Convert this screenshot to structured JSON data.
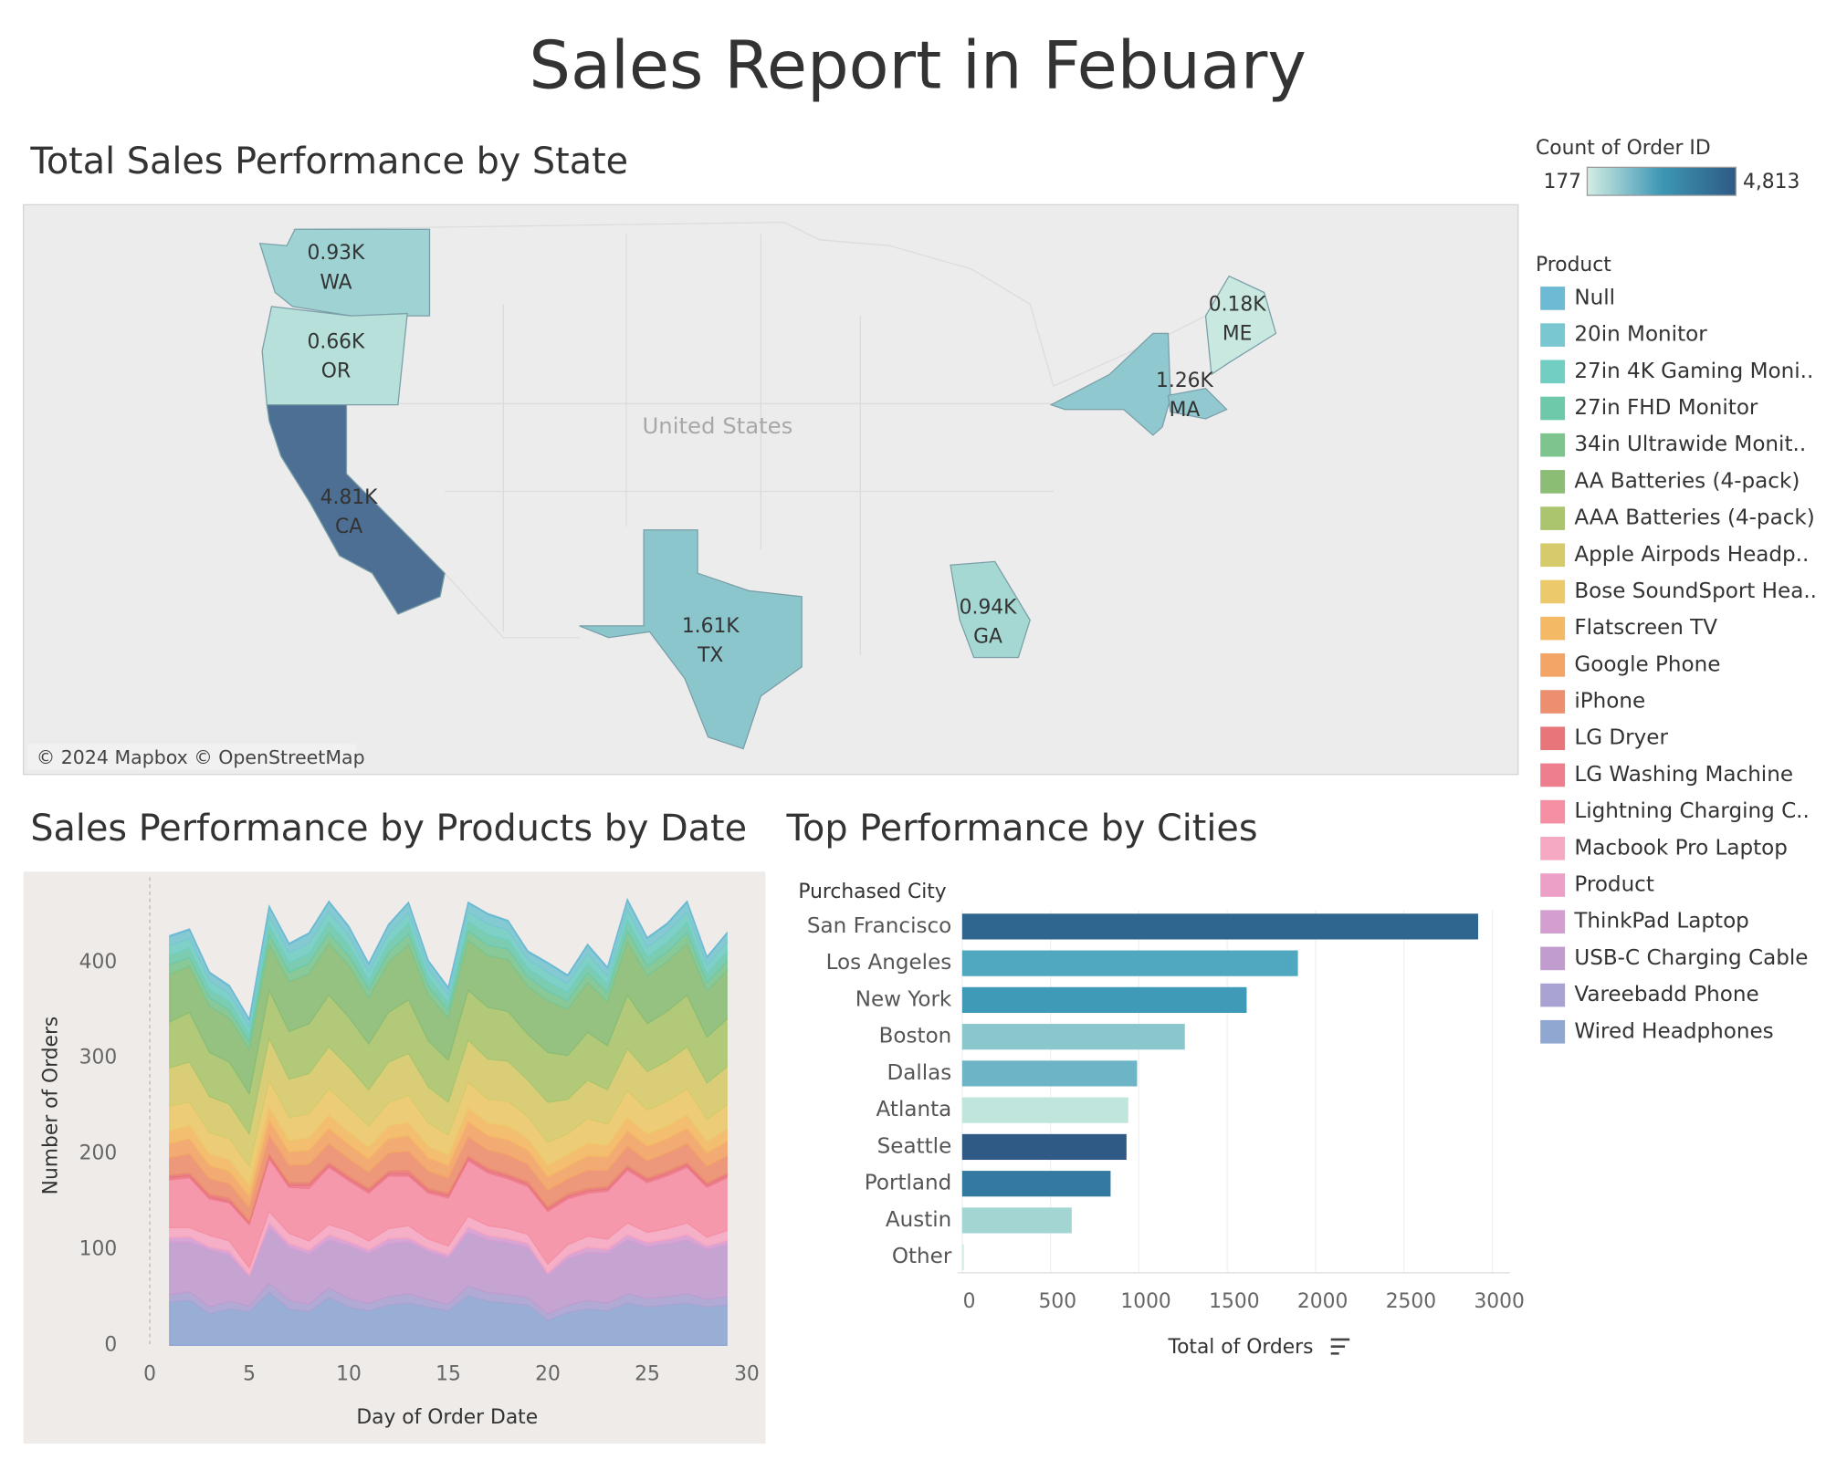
{
  "title": "Sales Report in Febuary",
  "chart_data": [
    {
      "type": "map",
      "title": "Total Sales Performance by State",
      "attribution": "© 2024 Mapbox © OpenStreetMap",
      "country_label": "United States",
      "states": [
        "WA",
        "OR",
        "CA",
        "TX",
        "GA",
        "MA",
        "ME"
      ],
      "values": [
        930,
        660,
        4810,
        1610,
        940,
        1260,
        180
      ],
      "value_labels": [
        "0.93K",
        "0.66K",
        "4.81K",
        "1.61K",
        "0.94K",
        "1.26K",
        "0.18K"
      ],
      "colors": [
        "#9fd3d3",
        "#b7e0db",
        "#4d6f94",
        "#8cc6cd",
        "#a6d8d3",
        "#92c9d0",
        "#c9e8df"
      ],
      "color_legend": {
        "title": "Count of Order ID",
        "ticks": [
          177,
          {
            "value": 4813,
            "label": "4,813"
          }
        ],
        "colors": [
          "#d3ede3",
          "#3d97b5",
          "#2e5a85"
        ]
      }
    },
    {
      "type": "area",
      "stacked": true,
      "title": "Sales Performance by Products by Date",
      "xlabel": "Day of Order Date",
      "ylabel": "Number of Orders",
      "legend_title": "Product",
      "x": [
        1,
        2,
        3,
        4,
        5,
        6,
        7,
        8,
        9,
        10,
        11,
        12,
        13,
        14,
        15,
        16,
        17,
        18,
        19,
        20,
        21,
        22,
        23,
        24,
        25,
        26,
        27,
        28,
        29
      ],
      "xlim": [
        -1.35,
        31
      ],
      "ylim": [
        0,
        495
      ],
      "xticks": [
        0,
        5,
        10,
        15,
        20,
        25,
        30
      ],
      "yticks": [
        0,
        100,
        200,
        300,
        400
      ],
      "series": [
        {
          "name": "Null",
          "color": "#6cbad3",
          "values": [
            1,
            1,
            1,
            1,
            1,
            1,
            1,
            1,
            1,
            1,
            1,
            1,
            1,
            1,
            1,
            1,
            1,
            1,
            1,
            1,
            1,
            1,
            1,
            1,
            1,
            1,
            1,
            1,
            1
          ]
        },
        {
          "name": "20in Monitor",
          "color": "#79c7d0",
          "values": [
            9,
            9,
            8,
            8,
            7,
            9,
            9,
            10,
            10,
            9,
            8,
            9,
            10,
            8,
            7,
            9,
            10,
            9,
            8,
            9,
            8,
            9,
            8,
            10,
            9,
            9,
            10,
            8,
            9
          ]
        },
        {
          "name": "27in 4K Gaming Moni..",
          "color": "#72cec3",
          "values": [
            10,
            10,
            9,
            8,
            8,
            10,
            10,
            11,
            11,
            10,
            9,
            10,
            11,
            9,
            8,
            10,
            11,
            10,
            9,
            10,
            9,
            10,
            9,
            11,
            10,
            10,
            11,
            9,
            10
          ]
        },
        {
          "name": "27in FHD Monitor",
          "color": "#6ec9ab",
          "values": [
            10,
            10,
            9,
            9,
            8,
            10,
            10,
            10,
            11,
            11,
            9,
            10,
            11,
            9,
            8,
            10,
            11,
            10,
            9,
            10,
            9,
            10,
            9,
            11,
            10,
            10,
            11,
            9,
            10
          ]
        },
        {
          "name": "34in Ultrawide Monit..",
          "color": "#7dc48e",
          "values": [
            10,
            9,
            9,
            8,
            8,
            10,
            10,
            11,
            11,
            10,
            9,
            10,
            11,
            9,
            8,
            10,
            11,
            11,
            10,
            10,
            9,
            10,
            9,
            11,
            10,
            10,
            11,
            9,
            10
          ]
        },
        {
          "name": "AA Batteries (4-pack)",
          "color": "#8bbd75",
          "values": [
            50,
            48,
            48,
            46,
            46,
            48,
            52,
            52,
            54,
            54,
            48,
            52,
            58,
            48,
            44,
            52,
            54,
            54,
            50,
            54,
            48,
            52,
            46,
            56,
            50,
            52,
            54,
            48,
            50
          ]
        },
        {
          "name": "AAA Batteries (4-pack)",
          "color": "#abc56e",
          "values": [
            48,
            52,
            46,
            44,
            42,
            50,
            50,
            52,
            54,
            52,
            48,
            52,
            56,
            48,
            44,
            52,
            54,
            52,
            48,
            52,
            46,
            50,
            46,
            56,
            50,
            52,
            54,
            48,
            50
          ]
        },
        {
          "name": "Apple Airpods Headp..",
          "color": "#d6cb6a",
          "values": [
            40,
            42,
            38,
            36,
            34,
            44,
            40,
            42,
            44,
            42,
            38,
            42,
            44,
            38,
            34,
            44,
            42,
            42,
            38,
            42,
            36,
            40,
            36,
            44,
            40,
            42,
            44,
            38,
            40
          ]
        },
        {
          "name": "Bose SoundSport Hea..",
          "color": "#ecc96a",
          "values": [
            26,
            24,
            22,
            22,
            20,
            28,
            24,
            25,
            27,
            26,
            22,
            25,
            28,
            24,
            21,
            27,
            25,
            26,
            23,
            24,
            22,
            26,
            22,
            28,
            25,
            26,
            27,
            23,
            25
          ]
        },
        {
          "name": "Flatscreen TV",
          "color": "#f4b964",
          "values": [
            13,
            14,
            12,
            12,
            11,
            13,
            12,
            13,
            14,
            13,
            12,
            13,
            14,
            12,
            11,
            14,
            13,
            14,
            12,
            12,
            12,
            13,
            12,
            14,
            13,
            13,
            14,
            12,
            13
          ]
        },
        {
          "name": "Google Phone",
          "color": "#f3a467",
          "values": [
            15,
            16,
            14,
            13,
            12,
            16,
            14,
            15,
            16,
            15,
            14,
            15,
            16,
            14,
            13,
            16,
            15,
            16,
            15,
            14,
            13,
            15,
            14,
            16,
            15,
            15,
            16,
            14,
            15
          ]
        },
        {
          "name": "iPhone",
          "color": "#ec8f6e",
          "values": [
            18,
            20,
            16,
            15,
            14,
            20,
            18,
            19,
            20,
            18,
            17,
            19,
            20,
            18,
            16,
            20,
            19,
            20,
            18,
            17,
            16,
            19,
            17,
            20,
            18,
            19,
            20,
            17,
            18
          ]
        },
        {
          "name": "LG Dryer",
          "color": "#e8757a",
          "values": [
            3,
            3,
            3,
            4,
            2,
            3,
            3,
            3,
            3,
            3,
            3,
            3,
            4,
            3,
            3,
            3,
            3,
            3,
            3,
            3,
            3,
            3,
            3,
            3,
            3,
            3,
            3,
            3,
            3
          ]
        },
        {
          "name": "LG Washing Machine",
          "color": "#ee7d8e",
          "values": [
            2,
            2,
            2,
            1,
            2,
            2,
            2,
            3,
            2,
            2,
            2,
            2,
            2,
            2,
            2,
            2,
            2,
            2,
            2,
            2,
            2,
            2,
            2,
            2,
            2,
            2,
            2,
            2,
            2
          ]
        },
        {
          "name": "Lightning Charging C..",
          "color": "#f58fa4",
          "values": [
            50,
            52,
            38,
            40,
            45,
            55,
            48,
            55,
            60,
            52,
            50,
            55,
            52,
            48,
            50,
            58,
            55,
            52,
            50,
            55,
            48,
            45,
            50,
            55,
            52,
            55,
            58,
            52,
            55
          ]
        },
        {
          "name": "Macbook Pro Laptop",
          "color": "#f5a9c2",
          "values": [
            10,
            9,
            12,
            10,
            7,
            11,
            10,
            9,
            10,
            11,
            9,
            10,
            12,
            9,
            9,
            11,
            10,
            10,
            9,
            9,
            10,
            11,
            10,
            12,
            10,
            11,
            12,
            9,
            10
          ]
        },
        {
          "name": "Product",
          "color": "#eca0c8",
          "values": [
            1,
            1,
            0,
            1,
            0,
            1,
            1,
            1,
            1,
            1,
            0,
            1,
            1,
            1,
            0,
            1,
            1,
            1,
            1,
            0,
            1,
            1,
            1,
            1,
            1,
            1,
            1,
            0,
            1
          ]
        },
        {
          "name": "ThinkPad Laptop",
          "color": "#d59ed1",
          "values": [
            4,
            5,
            3,
            4,
            3,
            5,
            4,
            4,
            5,
            4,
            4,
            5,
            4,
            3,
            4,
            5,
            4,
            4,
            4,
            3,
            4,
            5,
            4,
            5,
            4,
            4,
            5,
            4,
            4
          ]
        },
        {
          "name": "USB-C Charging Cable",
          "color": "#c09ccf",
          "values": [
            55,
            52,
            60,
            48,
            30,
            58,
            55,
            52,
            50,
            55,
            52,
            55,
            54,
            50,
            48,
            56,
            55,
            54,
            52,
            40,
            48,
            50,
            52,
            56,
            54,
            55,
            56,
            52,
            54
          ]
        },
        {
          "name": "Vareebadd Phone",
          "color": "#a9a3d3",
          "values": [
            8,
            9,
            7,
            8,
            6,
            10,
            9,
            8,
            10,
            9,
            8,
            9,
            10,
            8,
            7,
            10,
            9,
            9,
            8,
            7,
            8,
            9,
            8,
            10,
            9,
            9,
            10,
            8,
            9
          ]
        },
        {
          "name": "Wired Headphones",
          "color": "#8fa7d1",
          "values": [
            45,
            47,
            33,
            38,
            35,
            55,
            38,
            35,
            50,
            40,
            36,
            42,
            44,
            40,
            36,
            52,
            46,
            44,
            42,
            26,
            34,
            38,
            36,
            44,
            40,
            42,
            44,
            40,
            42
          ]
        }
      ]
    },
    {
      "type": "bar",
      "orientation": "horizontal",
      "title": "Top Performance by Cities",
      "categories_label": "Purchased City",
      "xlabel": "Total of Orders",
      "categories": [
        "San Francisco",
        "Los Angeles",
        "New York",
        "Boston",
        "Dallas",
        "Atlanta",
        "Seattle",
        "Portland",
        "Austin",
        "Other"
      ],
      "values": [
        2920,
        1900,
        1610,
        1260,
        990,
        940,
        930,
        840,
        620,
        10
      ],
      "colors": [
        "#2f6690",
        "#4fa8c0",
        "#3f9ab8",
        "#8ac7cc",
        "#6db5c6",
        "#bfe5dc",
        "#2e5a85",
        "#347aa0",
        "#a3d6d2",
        "#d3ede3"
      ],
      "xlim": [
        0,
        3100
      ],
      "xticks": [
        0,
        500,
        1000,
        1500,
        2000,
        2500,
        3000
      ],
      "grid": true
    }
  ]
}
